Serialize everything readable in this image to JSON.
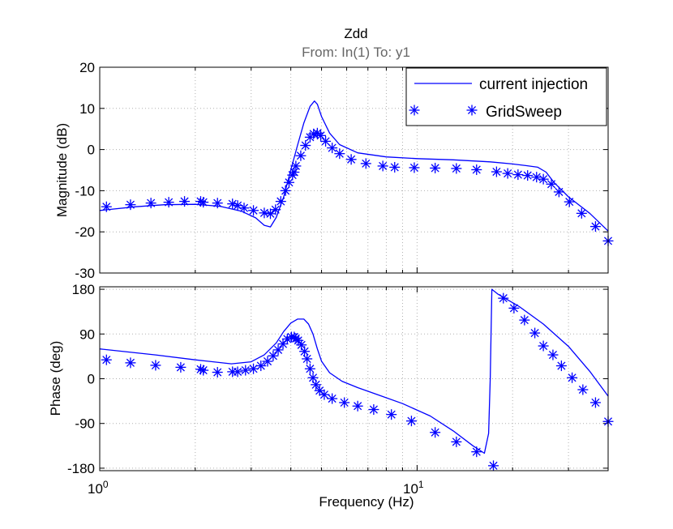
{
  "chart_data": {
    "type": "line",
    "title": "Zdd",
    "subtitle": "From: In(1)  To: y1",
    "xlabel": "Frequency  (Hz)",
    "xscale": "log",
    "xlim": [
      1,
      40
    ],
    "x_tick_labels": [
      {
        "base": "10",
        "exp": "0",
        "value": 1
      },
      {
        "base": "10",
        "exp": "1",
        "value": 10
      }
    ],
    "legend": {
      "position": "top-right",
      "entries": [
        {
          "label": "current injection",
          "style": "line"
        },
        {
          "label": "GridSweep",
          "style": "asterisk"
        }
      ]
    },
    "colors": {
      "series": "#0000ff",
      "grid": "#b0b0b0",
      "axes": "#000000",
      "subtitle": "#666666"
    },
    "panels": [
      {
        "name": "magnitude",
        "ylabel": "Magnitude (dB)",
        "ylim": [
          -30,
          20
        ],
        "yticks": [
          20,
          10,
          0,
          -10,
          -20,
          -30
        ],
        "ytick_labels": [
          "20",
          "10",
          "0",
          "-10",
          "-20",
          "-30"
        ],
        "series": [
          {
            "name": "current injection",
            "style": "line",
            "x": [
              1.0,
              1.3,
              1.6,
              2.0,
              2.4,
              2.8,
              3.1,
              3.3,
              3.45,
              3.6,
              3.8,
              4.0,
              4.2,
              4.4,
              4.6,
              4.75,
              4.85,
              5.0,
              5.3,
              5.7,
              6.5,
              8.0,
              10.0,
              13.0,
              17.0,
              20.0,
              22.0,
              24.0,
              25.5,
              27.0,
              30.0,
              35.0,
              40.0
            ],
            "y": [
              -14.8,
              -13.9,
              -13.4,
              -13.3,
              -13.8,
              -15.0,
              -16.6,
              -18.4,
              -18.8,
              -16.5,
              -11.5,
              -5.0,
              1.0,
              6.5,
              10.5,
              11.8,
              11.0,
              8.0,
              4.0,
              1.2,
              -0.8,
              -1.8,
              -2.2,
              -2.5,
              -3.0,
              -3.5,
              -3.9,
              -4.3,
              -5.5,
              -8.0,
              -11.5,
              -15.5,
              -19.8
            ]
          },
          {
            "name": "GridSweep",
            "style": "asterisk",
            "x": [
              1.05,
              1.25,
              1.45,
              1.65,
              1.85,
              2.08,
              2.12,
              2.35,
              2.62,
              2.72,
              2.85,
              3.05,
              3.3,
              3.45,
              3.58,
              3.72,
              3.85,
              3.95,
              4.05,
              4.1,
              4.15,
              4.3,
              4.45,
              4.6,
              4.72,
              4.85,
              4.97,
              5.15,
              5.4,
              5.7,
              6.2,
              6.9,
              7.8,
              8.5,
              9.8,
              11.4,
              13.3,
              15.4,
              17.8,
              19.3,
              20.8,
              22.3,
              23.8,
              25.0,
              26.5,
              28.0,
              30.2,
              33.0,
              36.5,
              40.0
            ],
            "y": [
              -13.9,
              -13.4,
              -13.0,
              -12.8,
              -12.6,
              -12.6,
              -12.8,
              -13.0,
              -13.2,
              -13.6,
              -14.2,
              -14.8,
              -15.4,
              -15.6,
              -14.6,
              -12.6,
              -10.0,
              -8.0,
              -6.2,
              -5.5,
              -4.0,
              -1.5,
              1.0,
              3.0,
              3.8,
              4.0,
              3.4,
              2.0,
              0.4,
              -1.0,
              -2.4,
              -3.4,
              -4.0,
              -4.3,
              -4.4,
              -4.5,
              -4.6,
              -4.9,
              -5.4,
              -5.8,
              -6.1,
              -6.3,
              -6.7,
              -7.2,
              -8.4,
              -10.3,
              -12.7,
              -15.5,
              -18.7,
              -22.2
            ]
          }
        ]
      },
      {
        "name": "phase",
        "ylabel": "Phase (deg)",
        "ylim": [
          -185,
          185
        ],
        "yticks": [
          180,
          90,
          0,
          -90,
          -180
        ],
        "ytick_labels": [
          "180",
          "90",
          "0",
          "-90",
          "-180"
        ],
        "series": [
          {
            "name": "current injection",
            "style": "line",
            "x": [
              1.0,
              1.5,
              2.0,
              2.6,
              3.0,
              3.3,
              3.6,
              3.8,
              4.0,
              4.2,
              4.4,
              4.55,
              4.7,
              4.85,
              5.0,
              5.3,
              5.8,
              6.5,
              7.5,
              9.0,
              11.0,
              13.0,
              15.0,
              16.3,
              16.8,
              17.0,
              17.2,
              18.0,
              21.0,
              25.0,
              30.0,
              35.0,
              40.0
            ],
            "y": [
              60,
              48,
              38,
              30,
              34,
              48,
              72,
              95,
              112,
              120,
              120,
              110,
              90,
              60,
              35,
              12,
              -5,
              -18,
              -32,
              -50,
              -75,
              -105,
              -135,
              -150,
              -110,
              0,
              180,
              170,
              145,
              110,
              65,
              15,
              -35
            ]
          },
          {
            "name": "GridSweep",
            "style": "asterisk",
            "x": [
              1.05,
              1.25,
              1.5,
              1.8,
              2.08,
              2.12,
              2.35,
              2.62,
              2.72,
              2.88,
              3.05,
              3.22,
              3.38,
              3.52,
              3.65,
              3.78,
              3.9,
              4.02,
              4.1,
              4.15,
              4.22,
              4.32,
              4.42,
              4.5,
              4.6,
              4.7,
              4.8,
              4.93,
              5.1,
              5.4,
              5.9,
              6.5,
              7.3,
              8.3,
              9.6,
              11.4,
              13.3,
              15.4,
              17.4,
              18.7,
              20.2,
              21.8,
              23.5,
              25.0,
              26.8,
              28.5,
              30.8,
              33.3,
              36.5,
              40.0
            ],
            "y": [
              38,
              32,
              27,
              23,
              19,
              17,
              13,
              14,
              14,
              17,
              20,
              26,
              35,
              46,
              58,
              70,
              80,
              84,
              84,
              81,
              77,
              68,
              55,
              40,
              20,
              2,
              -12,
              -24,
              -32,
              -40,
              -48,
              -55,
              -62,
              -72,
              -85,
              -108,
              -127,
              -147,
              -175,
              162,
              142,
              118,
              92,
              66,
              48,
              26,
              2,
              -22,
              -48,
              -86
            ]
          }
        ]
      }
    ]
  }
}
